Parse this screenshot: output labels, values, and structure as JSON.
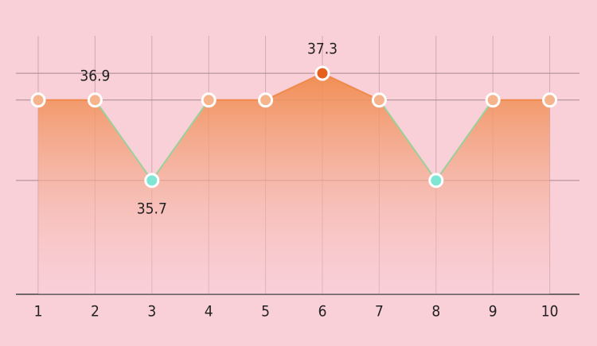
{
  "chart_data": {
    "type": "line",
    "categories": [
      "1",
      "2",
      "3",
      "4",
      "5",
      "6",
      "7",
      "8",
      "9",
      "10"
    ],
    "values": [
      36.9,
      36.9,
      35.7,
      36.9,
      36.9,
      37.3,
      36.9,
      35.7,
      36.9,
      36.9
    ],
    "value_labels": [
      null,
      "36.9",
      "35.7",
      null,
      null,
      "37.3",
      null,
      null,
      null,
      null
    ],
    "point_colors": [
      "#f5b48c",
      "#f5b48c",
      "#7fe6d6",
      "#f5b48c",
      "#f5b48c",
      "#e4601c",
      "#f5b48c",
      "#7fe6d6",
      "#f5b48c",
      "#f5b48c"
    ],
    "color": "#f08a4b",
    "low_segment_color": "#9bd09a",
    "background": "#f9cfd8",
    "ylim": [
      34,
      37.8
    ],
    "yticks": [
      35.7,
      36.9,
      37.3
    ],
    "grid": true
  }
}
